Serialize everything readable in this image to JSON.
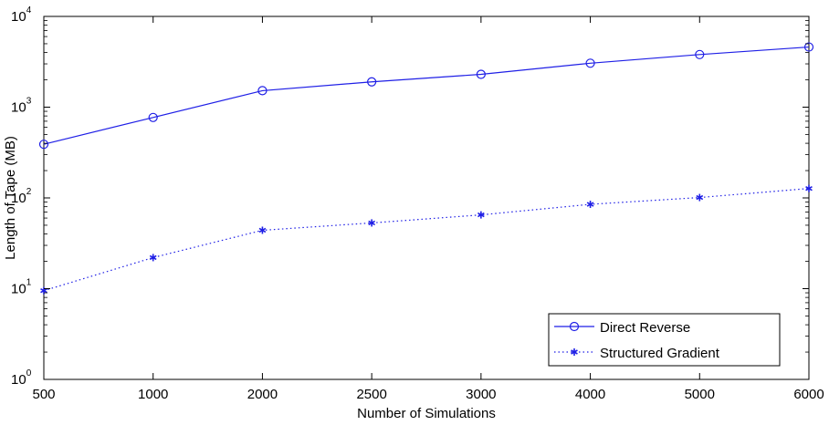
{
  "chart_data": {
    "type": "line",
    "xlabel": "Number of Simulations",
    "ylabel": "Length of Tape (MB)",
    "y_scale": "log",
    "ylim": [
      1,
      10000
    ],
    "categories": [
      "500",
      "1000",
      "2000",
      "2500",
      "3000",
      "4000",
      "5000",
      "6000"
    ],
    "y_ticks": [
      {
        "base": "10",
        "exp": "0",
        "value": 1
      },
      {
        "base": "10",
        "exp": "1",
        "value": 10
      },
      {
        "base": "10",
        "exp": "2",
        "value": 100
      },
      {
        "base": "10",
        "exp": "3",
        "value": 1000
      },
      {
        "base": "10",
        "exp": "4",
        "value": 10000
      }
    ],
    "grid": false,
    "legend_position": "bottom-right",
    "series": [
      {
        "name": "Direct Reverse",
        "values": [
          390,
          770,
          1520,
          1900,
          2300,
          3050,
          3800,
          4600
        ],
        "color": "#1f1fe6",
        "line_style": "solid",
        "marker": "circle"
      },
      {
        "name": "Structured Gradient",
        "values": [
          9.5,
          22,
          44,
          53,
          65,
          85,
          101,
          127
        ],
        "color": "#1f1fe6",
        "line_style": "dotted",
        "marker": "asterisk"
      }
    ]
  }
}
